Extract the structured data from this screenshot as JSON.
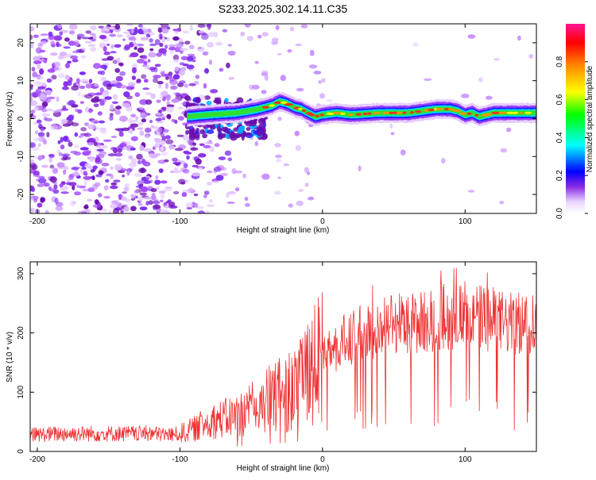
{
  "title": "S233.2025.302.14.11.C35",
  "chart_data": [
    {
      "type": "heatmap",
      "xlabel": "Height of straight line (km)",
      "ylabel": "Frequency (Hz)",
      "xlim": [
        -205,
        150
      ],
      "ylim": [
        -25,
        25
      ],
      "xticks": [
        -200,
        -100,
        0,
        100
      ],
      "yticks": [
        -20,
        -10,
        0,
        10,
        20
      ],
      "colorbar": {
        "label": "Normalized spectral amplitude",
        "range": [
          0,
          1
        ],
        "ticks": [
          0.0,
          0.2,
          0.4,
          0.6,
          0.8
        ],
        "tick_labels": [
          "0.0",
          "0.2",
          "0.4",
          "0.6",
          "0.8"
        ]
      },
      "ridge": {
        "x": [
          -95,
          -80,
          -60,
          -45,
          -35,
          -30,
          -25,
          -20,
          -15,
          -10,
          -5,
          0,
          10,
          20,
          40,
          60,
          80,
          90,
          95,
          100,
          105,
          110,
          120,
          150
        ],
        "y": [
          0.5,
          1.0,
          1.5,
          2.5,
          3.5,
          4.5,
          4.0,
          3.0,
          2.5,
          1.5,
          0.5,
          1.0,
          1.5,
          1.0,
          1.5,
          1.5,
          2.5,
          2.5,
          2.0,
          1.0,
          1.5,
          0.5,
          1.5,
          1.5
        ]
      }
    },
    {
      "type": "line",
      "xlabel": "Height of straight line (km)",
      "ylabel": "SNR (10 * v/v)",
      "xlim": [
        -205,
        150
      ],
      "ylim": [
        0,
        320
      ],
      "xticks": [
        -200,
        -100,
        0,
        100
      ],
      "yticks": [
        0,
        100,
        200,
        300
      ],
      "series": [
        {
          "name": "SNR",
          "color": "#ee3030",
          "x": [
            -205,
            -180,
            -150,
            -120,
            -105,
            -100,
            -90,
            -80,
            -70,
            -60,
            -50,
            -40,
            -30,
            -20,
            -10,
            -5,
            0,
            10,
            20,
            30,
            40,
            50,
            60,
            70,
            80,
            90,
            100,
            110,
            120,
            130,
            140,
            150
          ],
          "y": [
            28,
            30,
            30,
            30,
            28,
            30,
            38,
            50,
            55,
            60,
            70,
            85,
            95,
            110,
            130,
            145,
            160,
            180,
            190,
            205,
            210,
            220,
            215,
            218,
            225,
            228,
            230,
            225,
            222,
            215,
            215,
            220
          ]
        }
      ]
    }
  ]
}
